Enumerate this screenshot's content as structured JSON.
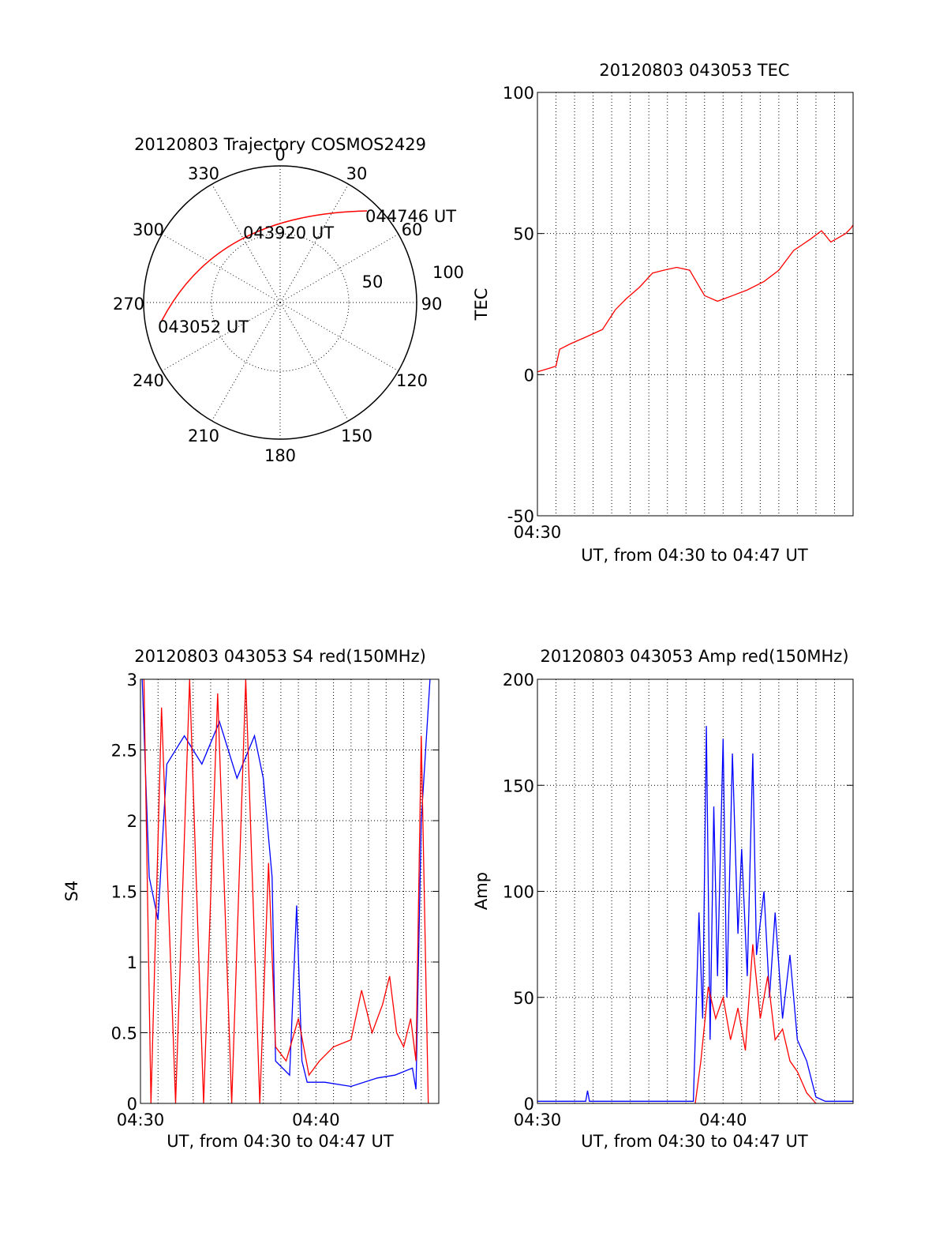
{
  "polar_plot": {
    "title": "20120803 Trajectory COSMOS2429",
    "azimuth_labels": [
      "0",
      "30",
      "60",
      "90",
      "120",
      "150",
      "180",
      "210",
      "240",
      "270",
      "300",
      "330"
    ],
    "radius_labels": [
      "50",
      "100"
    ],
    "annotations": [
      "044746 UT",
      "043920 UT",
      "043052 UT"
    ],
    "trajectory_color": "#ff0000"
  },
  "chart_data": [
    {
      "id": "tec",
      "type": "line",
      "title": "20120803 043053 TEC",
      "xlabel": "UT, from 04:30 to 04:47 UT",
      "ylabel": "TEC",
      "xlim": [
        "04:30",
        "04:47"
      ],
      "ylim": [
        -50,
        100
      ],
      "yticks": [
        "-50",
        "0",
        "50",
        "100"
      ],
      "xticks": [
        "04:30"
      ],
      "grid": true,
      "series": [
        {
          "color": "#ff0000",
          "x": [
            0,
            0.5,
            1,
            1.2,
            1.8,
            2.5,
            3.5,
            4.2,
            4.8,
            5.5,
            6.2,
            6.8,
            7.5,
            8.2,
            9.0,
            9.7,
            10.1,
            10.5,
            11.3,
            12.2,
            13.0,
            13.8,
            14.7,
            15.3,
            15.8,
            16.6,
            16.9,
            17.0
          ],
          "y": [
            1,
            2,
            3,
            9,
            11,
            13,
            16,
            23,
            27,
            31,
            36,
            37,
            38,
            37,
            28,
            26,
            27,
            28,
            30,
            33,
            37,
            44,
            48,
            51,
            47,
            50,
            52,
            53
          ]
        }
      ]
    },
    {
      "id": "s4",
      "type": "line",
      "title": "20120803 043053 S4 red(150MHz)",
      "xlabel": "UT, from 04:30 to 04:47 UT",
      "ylabel": "S4",
      "xlim": [
        "04:30",
        "04:47"
      ],
      "ylim": [
        0,
        3
      ],
      "yticks": [
        "0",
        "0.5",
        "1",
        "1.5",
        "2",
        "2.5",
        "3"
      ],
      "xticks": [
        "04:30",
        "04:40"
      ],
      "grid": true,
      "series": [
        {
          "color": "#0000ff",
          "x": [
            0.1,
            0.5,
            1.0,
            1.5,
            2.5,
            3.5,
            4.5,
            5.5,
            6.5,
            7.0,
            7.5,
            7.7,
            8.5,
            8.9,
            9.2,
            9.5,
            10.5,
            12.0,
            13.5,
            14.5,
            15.5,
            15.7,
            16.0,
            16.5
          ],
          "y": [
            3.0,
            1.6,
            1.3,
            2.4,
            2.6,
            2.4,
            2.7,
            2.3,
            2.6,
            2.3,
            1.6,
            0.3,
            0.2,
            1.4,
            0.3,
            0.15,
            0.15,
            0.12,
            0.18,
            0.2,
            0.25,
            0.1,
            2.0,
            3.0
          ]
        },
        {
          "color": "#ff0000",
          "x": [
            0.2,
            0.6,
            1.2,
            2.0,
            2.8,
            3.6,
            4.4,
            5.2,
            6.0,
            6.8,
            7.3,
            7.7,
            8.3,
            9.0,
            9.6,
            10.2,
            11.0,
            12.0,
            12.6,
            13.2,
            13.8,
            14.2,
            14.6,
            15.0,
            15.4,
            15.7,
            16.0,
            16.4
          ],
          "y": [
            3.0,
            0.0,
            2.8,
            0.0,
            3.0,
            0.0,
            2.9,
            0.0,
            3.0,
            0.0,
            1.7,
            0.4,
            0.3,
            0.6,
            0.2,
            0.3,
            0.4,
            0.45,
            0.8,
            0.5,
            0.7,
            0.9,
            0.5,
            0.4,
            0.6,
            0.3,
            2.6,
            0.0
          ]
        }
      ]
    },
    {
      "id": "amp",
      "type": "line",
      "title": "20120803 043053 Amp red(150MHz)",
      "xlabel": "UT, from 04:30 to 04:47 UT",
      "ylabel": "Amp",
      "xlim": [
        "04:30",
        "04:47"
      ],
      "ylim": [
        0,
        200
      ],
      "yticks": [
        "0",
        "50",
        "100",
        "150",
        "200"
      ],
      "xticks": [
        "04:30",
        "04:40"
      ],
      "grid": true,
      "series": [
        {
          "color": "#0000ff",
          "x": [
            0,
            2.6,
            2.7,
            2.8,
            8.4,
            8.7,
            8.9,
            9.1,
            9.3,
            9.5,
            9.7,
            10.0,
            10.2,
            10.5,
            10.8,
            11.0,
            11.3,
            11.6,
            11.8,
            12.2,
            12.5,
            12.8,
            13.2,
            13.6,
            14.0,
            14.5,
            15.0,
            15.5,
            16.0,
            17.0
          ],
          "y": [
            1,
            1,
            6,
            1,
            1,
            90,
            40,
            178,
            30,
            140,
            60,
            172,
            50,
            165,
            80,
            120,
            60,
            165,
            70,
            100,
            50,
            90,
            40,
            70,
            30,
            20,
            3,
            1,
            1,
            1
          ]
        },
        {
          "color": "#ff0000",
          "x": [
            8.5,
            8.8,
            9.2,
            9.6,
            10.0,
            10.4,
            10.8,
            11.2,
            11.6,
            12.0,
            12.4,
            12.8,
            13.2,
            13.6,
            14.0,
            14.5,
            15.0
          ],
          "y": [
            0,
            20,
            55,
            40,
            50,
            30,
            45,
            25,
            75,
            40,
            60,
            30,
            35,
            20,
            15,
            5,
            0
          ]
        }
      ]
    }
  ]
}
